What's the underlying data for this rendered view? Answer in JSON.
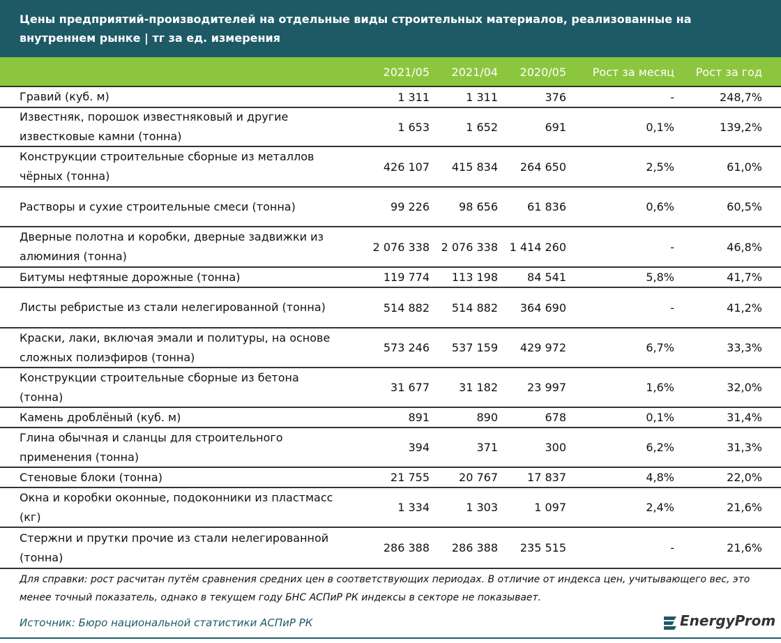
{
  "header": {
    "title": "Цены предприятий-производителей на отдельные виды строительных материалов, реализованные на внутреннем рынке | тг за ед. измерения"
  },
  "table": {
    "columns": [
      "2021/05",
      "2021/04",
      "2020/05",
      "Рост за месяц",
      "Рост за год"
    ],
    "rows": [
      [
        "Гравий (куб. м)",
        "1 311",
        "1 311",
        "376",
        "-",
        "248,7%"
      ],
      [
        "Известняк, порошок известняковый и другие известковые камни (тонна)",
        "1 653",
        "1 652",
        "691",
        "0,1%",
        "139,2%"
      ],
      [
        "Конструкции строительные сборные из металлов чёрных (тонна)",
        "426 107",
        "415 834",
        "264 650",
        "2,5%",
        "61,0%"
      ],
      [
        "Растворы и сухие строительные смеси (тонна)",
        "99 226",
        "98 656",
        "61 836",
        "0,6%",
        "60,5%"
      ],
      [
        "Дверные полотна и коробки, дверные задвижки из алюминия (тонна)",
        "2 076 338",
        "2 076 338",
        "1 414 260",
        "-",
        "46,8%"
      ],
      [
        "Битумы нефтяные дорожные (тонна)",
        "119 774",
        "113 198",
        "84 541",
        "5,8%",
        "41,7%"
      ],
      [
        "Листы ребристые из стали нелегированной (тонна)",
        "514 882",
        "514 882",
        "364 690",
        "-",
        "41,2%"
      ],
      [
        "Краски, лаки, включая эмали и политуры, на основе сложных полиэфиров (тонна)",
        "573 246",
        "537 159",
        "429 972",
        "6,7%",
        "33,3%"
      ],
      [
        "Конструкции строительные сборные из бетона (тонна)",
        "31 677",
        "31 182",
        "23 997",
        "1,6%",
        "32,0%"
      ],
      [
        "Камень дроблёный (куб. м)",
        "891",
        "890",
        "678",
        "0,1%",
        "31,4%"
      ],
      [
        "Глина обычная и сланцы для строительного применения (тонна)",
        "394",
        "371",
        "300",
        "6,2%",
        "31,3%"
      ],
      [
        "Стеновые блоки (тонна)",
        "21 755",
        "20 767",
        "17 837",
        "4,8%",
        "22,0%"
      ],
      [
        "Окна и коробки оконные, подоконники из пластмасс (кг)",
        "1 334",
        "1 303",
        "1 097",
        "2,4%",
        "21,6%"
      ],
      [
        "Стержни и прутки прочие из стали нелегированной (тонна)",
        "286 388",
        "286 388",
        "235 515",
        "-",
        "21,6%"
      ]
    ]
  },
  "footnote": "Для справки: рост расчитан путём сравнения средних цен в соответствующих периодах. В отличие от индекса цен, учитывающего вес, это менее точный показатель, однако в текущем году БНС АСПиР РК индексы в секторе не показывает.",
  "source": "Источник: Бюро национальной статистики АСПиР РК",
  "logo": "EnergyProm"
}
